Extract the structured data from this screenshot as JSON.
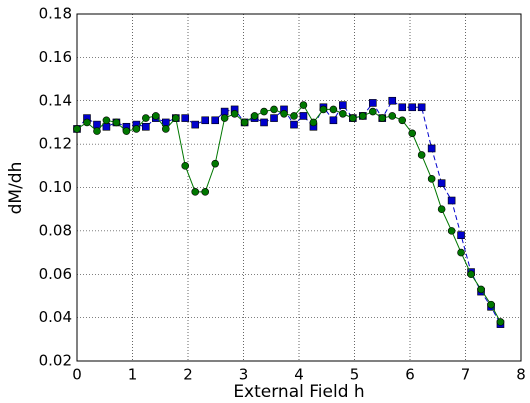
{
  "chart_data": {
    "type": "line",
    "x_label": "External Field h",
    "y_label": "dM/dh",
    "x": [
      0,
      0.18,
      0.36,
      0.53,
      0.71,
      0.89,
      1.07,
      1.24,
      1.42,
      1.6,
      1.78,
      1.95,
      2.13,
      2.31,
      2.49,
      2.66,
      2.84,
      3.02,
      3.2,
      3.37,
      3.55,
      3.73,
      3.91,
      4.08,
      4.26,
      4.44,
      4.62,
      4.79,
      4.97,
      5.15,
      5.33,
      5.5,
      5.68,
      5.86,
      6.04,
      6.21,
      6.39,
      6.57,
      6.75,
      6.92,
      7.1,
      7.28,
      7.46,
      7.63
    ],
    "series": [
      {
        "color": "#0000cc",
        "linestyle": "dashed",
        "marker": "square",
        "values": [
          0.127,
          0.132,
          0.129,
          0.128,
          0.13,
          0.128,
          0.129,
          0.128,
          0.132,
          0.13,
          0.132,
          0.132,
          0.129,
          0.131,
          0.131,
          0.135,
          0.136,
          0.13,
          0.132,
          0.13,
          0.132,
          0.136,
          0.129,
          0.133,
          0.128,
          0.137,
          0.131,
          0.138,
          0.132,
          0.133,
          0.139,
          0.132,
          0.14,
          0.137,
          0.137,
          0.137,
          0.118,
          0.102,
          0.094,
          0.078,
          0.061,
          0.052,
          0.045,
          0.037
        ]
      },
      {
        "color": "#007700",
        "linestyle": "solid",
        "marker": "circle",
        "values": [
          0.127,
          0.13,
          0.126,
          0.131,
          0.13,
          0.126,
          0.127,
          0.132,
          0.133,
          0.127,
          0.132,
          0.11,
          0.098,
          0.098,
          0.111,
          0.132,
          0.134,
          0.13,
          0.133,
          0.135,
          0.136,
          0.134,
          0.133,
          0.138,
          0.13,
          0.136,
          0.136,
          0.134,
          0.132,
          0.133,
          0.135,
          0.132,
          0.133,
          0.131,
          0.125,
          0.115,
          0.104,
          0.09,
          0.08,
          0.07,
          0.06,
          0.053,
          0.046,
          0.038
        ]
      }
    ],
    "xlim": [
      0,
      8
    ],
    "xticks": [
      0,
      1,
      2,
      3,
      4,
      5,
      6,
      7,
      8
    ],
    "ylim": [
      0.02,
      0.18
    ],
    "yticks": [
      {
        "value": 0.02,
        "label": "0.02"
      },
      {
        "value": 0.04,
        "label": "0.04"
      },
      {
        "value": 0.06,
        "label": "0.06"
      },
      {
        "value": 0.08,
        "label": "0.08"
      },
      {
        "value": 0.1,
        "label": "0.10"
      },
      {
        "value": 0.12,
        "label": "0.12"
      },
      {
        "value": 0.14,
        "label": "0.14"
      },
      {
        "value": 0.16,
        "label": "0.16"
      },
      {
        "value": 0.18,
        "label": "0.18"
      }
    ],
    "grid": true
  }
}
